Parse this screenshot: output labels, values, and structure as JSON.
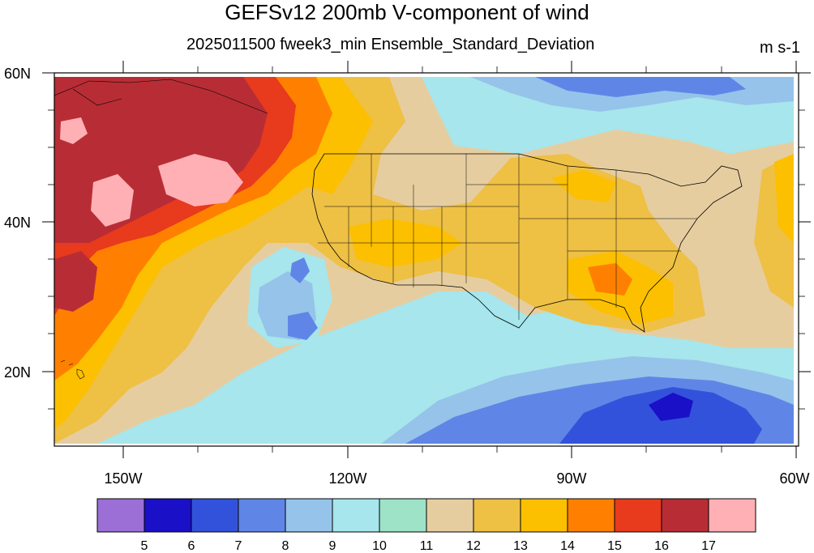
{
  "title": "GEFSv12 200mb V-component of wind",
  "subtitle": "2025011500 fweek3_min Ensemble_Standard_Deviation",
  "units": "m s-1",
  "lat_labels": [
    "60N",
    "40N",
    "20N"
  ],
  "lon_labels": [
    "150W",
    "120W",
    "90W",
    "60W"
  ],
  "colorbar": {
    "levels": [
      "5",
      "6",
      "7",
      "8",
      "9",
      "10",
      "11",
      "12",
      "13",
      "14",
      "15",
      "16",
      "17"
    ],
    "colors": [
      "#9b6fd6",
      "#1a10c8",
      "#3352dc",
      "#5f86e6",
      "#96c3ea",
      "#a6e6ec",
      "#9ee2c8",
      "#e6cda0",
      "#eec044",
      "#fcc000",
      "#ff8000",
      "#e83a1c",
      "#b82d35",
      "#ffb0b4"
    ]
  },
  "map": {
    "region": "Pacific / North America",
    "lat_range": [
      10,
      60
    ],
    "lon_range": [
      -160,
      -60
    ],
    "background_color": "#a6e6ec"
  }
}
